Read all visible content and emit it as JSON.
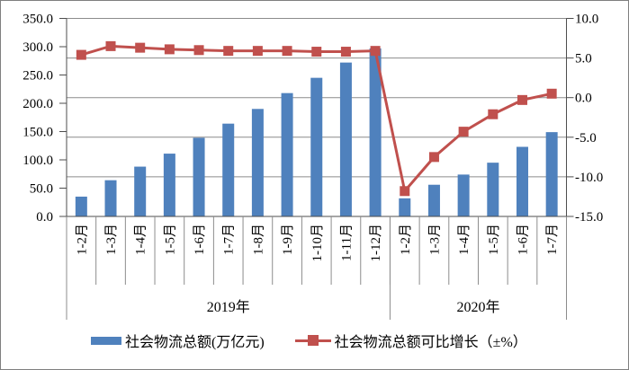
{
  "chart_data": {
    "type": "bar+line",
    "title": "",
    "groups": [
      {
        "year": "2019年",
        "categories": [
          "1-2月",
          "1-3月",
          "1-4月",
          "1-5月",
          "1-6月",
          "1-7月",
          "1-8月",
          "1-9月",
          "1-10月",
          "1-11月",
          "1-12月"
        ]
      },
      {
        "year": "2020年",
        "categories": [
          "1-2月",
          "1-3月",
          "1-4月",
          "1-5月",
          "1-6月",
          "1-7月"
        ]
      }
    ],
    "series": [
      {
        "name": "社会物流总额(万亿元)",
        "type": "bar",
        "axis": "left",
        "color": "#4F81BD",
        "values": [
          35,
          64,
          88,
          111,
          139,
          164,
          190,
          218,
          245,
          272,
          297,
          32,
          56,
          74,
          95,
          123,
          149
        ]
      },
      {
        "name": "社会物流总额可比增长（±%）",
        "type": "line",
        "axis": "right",
        "color": "#C0504D",
        "values": [
          5.4,
          6.5,
          6.3,
          6.1,
          6.0,
          5.9,
          5.9,
          5.9,
          5.8,
          5.8,
          5.9,
          -11.8,
          -7.5,
          -4.3,
          -2.1,
          -0.3,
          0.5
        ]
      }
    ],
    "left_axis": {
      "min": 0,
      "max": 350,
      "step": 50,
      "labels": [
        "0.0",
        "50.0",
        "100.0",
        "150.0",
        "200.0",
        "250.0",
        "300.0",
        "350.0"
      ]
    },
    "right_axis": {
      "min": -15,
      "max": 10,
      "step": 5,
      "labels": [
        "-15.0",
        "-10.0",
        "-5.0",
        "0.0",
        "5.0",
        "10.0"
      ]
    },
    "grid": true,
    "legend_position": "bottom",
    "gridline_color": "#8c8c8c",
    "axis_color": "#4d4d4d"
  }
}
